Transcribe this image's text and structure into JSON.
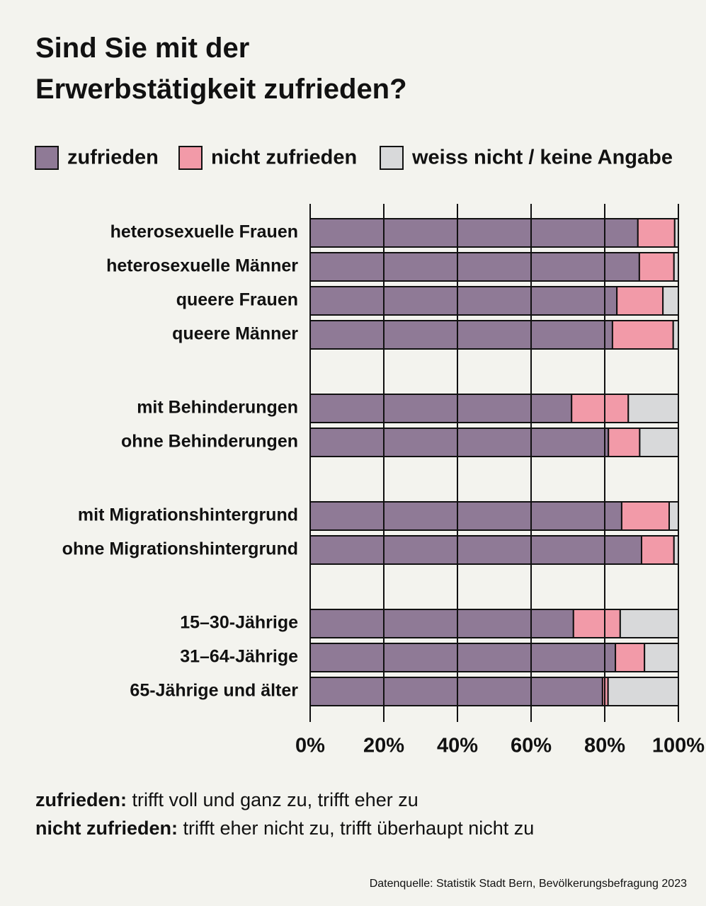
{
  "chart_data": {
    "type": "stacked-bar-horizontal",
    "title": "Sind Sie mit der Erwerbstätigkeit zufrieden?",
    "categories": [
      "heterosexuelle Frauen",
      "heterosexuelle Männer",
      "queere Frauen",
      "queere Männer",
      null,
      "mit Behinderungen",
      "ohne Behinderungen",
      null,
      "mit Migrationshintergrund",
      "ohne Migrationshintergrund",
      null,
      "15–30-Jährige",
      "31–64-Jährige",
      "65-Jährige und älter"
    ],
    "series": [
      {
        "name": "zufrieden",
        "color": "#8f7a96",
        "values": [
          89.0,
          89.4,
          83.3,
          82.1,
          null,
          71.0,
          81.0,
          null,
          84.6,
          90.0,
          null,
          71.5,
          82.9,
          79.4
        ]
      },
      {
        "name": "nicht zufrieden",
        "color": "#f29aa8",
        "values": [
          10.0,
          9.4,
          12.5,
          16.5,
          null,
          15.4,
          8.5,
          null,
          12.9,
          8.8,
          null,
          12.7,
          7.9,
          1.5
        ]
      },
      {
        "name": "weiss nicht / keine Angabe",
        "color": "#d8d9da",
        "values": [
          1.0,
          1.2,
          4.2,
          1.4,
          null,
          13.6,
          10.5,
          null,
          2.5,
          1.2,
          null,
          15.8,
          9.2,
          19.1
        ]
      }
    ],
    "xlim": [
      0,
      100
    ],
    "xticks": [
      {
        "value": 0,
        "label": "0%"
      },
      {
        "value": 20,
        "label": "20%"
      },
      {
        "value": 40,
        "label": "40%"
      },
      {
        "value": 60,
        "label": "60%"
      },
      {
        "value": 80,
        "label": "80%"
      },
      {
        "value": 100,
        "label": "100%"
      }
    ],
    "grid": true,
    "notes": [
      {
        "term": "zufrieden:",
        "text": " trifft voll und ganz zu, trifft eher zu"
      },
      {
        "term": "nicht zufrieden:",
        "text": " trifft eher nicht zu, trifft überhaupt nicht zu"
      }
    ],
    "source": "Datenquelle: Statistik Stadt Bern, Bevölkerungsbefragung 2023"
  }
}
